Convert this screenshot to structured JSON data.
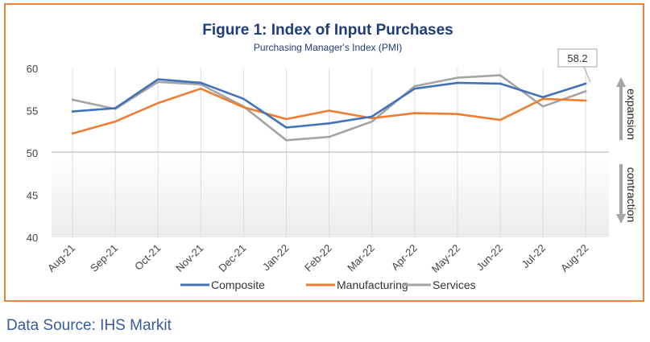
{
  "chart_data": {
    "type": "line",
    "title": "Figure 1: Index of Input Purchases",
    "subtitle": "Purchasing Manager's Index (PMI)",
    "categories": [
      "Aug-21",
      "Sep-21",
      "Oct-21",
      "Nov-21",
      "Dec-21",
      "Jan-22",
      "Feb-22",
      "Mar-22",
      "Apr-22",
      "May-22",
      "Jun-22",
      "Jul-22",
      "Aug-22"
    ],
    "series": [
      {
        "name": "Composite",
        "color": "#4472b8",
        "values": [
          54.9,
          55.3,
          58.7,
          58.3,
          56.4,
          53.0,
          53.5,
          54.3,
          57.6,
          58.3,
          58.2,
          56.6,
          58.2
        ]
      },
      {
        "name": "Manufacturing",
        "color": "#ed7d31",
        "values": [
          52.3,
          53.7,
          55.9,
          57.6,
          55.4,
          54.0,
          55.0,
          54.1,
          54.7,
          54.6,
          53.9,
          56.4,
          56.2
        ]
      },
      {
        "name": "Services",
        "color": "#a5a5a5",
        "values": [
          56.3,
          55.2,
          58.4,
          58.1,
          55.5,
          51.5,
          51.9,
          53.7,
          57.9,
          58.9,
          59.2,
          55.5,
          57.3
        ]
      }
    ],
    "ylim": [
      40,
      60
    ],
    "yticks": [
      40,
      45,
      50,
      55,
      60
    ],
    "threshold": 50,
    "callout": {
      "label": "58.2",
      "category": "Aug-22",
      "value": 58.2
    },
    "side_labels": {
      "expansion": "expansion",
      "contraction": "contraction"
    },
    "legend": "bottom",
    "grid": "vertical"
  },
  "source": "Data Source: IHS Markit"
}
